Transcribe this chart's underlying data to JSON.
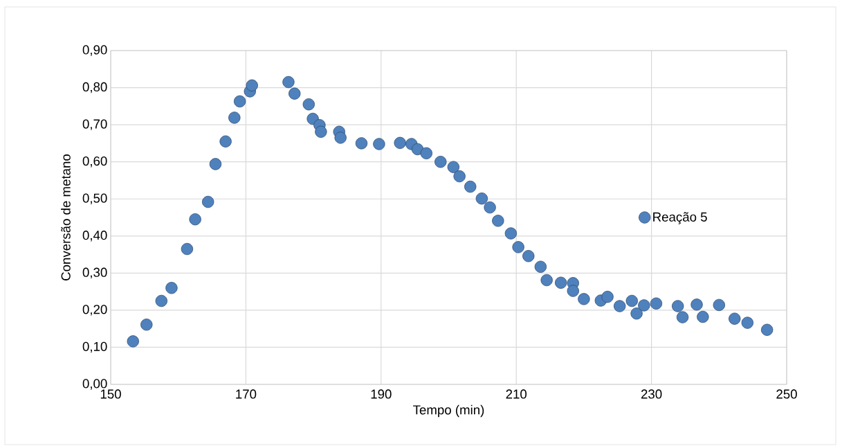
{
  "chart_data": {
    "type": "scatter",
    "xlabel": "Tempo (min)",
    "ylabel": "Conversão de metano",
    "x": [
      153.3,
      155.3,
      157.5,
      159.0,
      161.3,
      162.5,
      164.4,
      165.5,
      167.0,
      168.3,
      169.1,
      170.6,
      170.9,
      176.3,
      177.2,
      179.3,
      179.9,
      180.9,
      181.1,
      183.8,
      184.0,
      187.1,
      189.7,
      192.8,
      194.5,
      195.4,
      196.7,
      198.8,
      200.7,
      201.6,
      203.2,
      204.9,
      206.1,
      207.3,
      209.2,
      210.3,
      211.8,
      213.6,
      214.5,
      216.6,
      218.4,
      218.4,
      220.0,
      222.5,
      223.5,
      225.3,
      227.1,
      227.8,
      228.9,
      230.7,
      233.9,
      234.6,
      236.7,
      237.6,
      240.0,
      242.3,
      244.2,
      247.1
    ],
    "series": [
      {
        "name": "Reação 5",
        "color": "#4f81bd",
        "values": [
          0.116,
          0.161,
          0.225,
          0.26,
          0.365,
          0.445,
          0.492,
          0.594,
          0.655,
          0.719,
          0.763,
          0.79,
          0.806,
          0.815,
          0.784,
          0.755,
          0.716,
          0.699,
          0.681,
          0.681,
          0.665,
          0.65,
          0.648,
          0.651,
          0.648,
          0.634,
          0.623,
          0.6,
          0.586,
          0.561,
          0.533,
          0.501,
          0.477,
          0.441,
          0.407,
          0.37,
          0.346,
          0.317,
          0.281,
          0.274,
          0.273,
          0.252,
          0.23,
          0.226,
          0.236,
          0.211,
          0.225,
          0.191,
          0.213,
          0.218,
          0.211,
          0.181,
          0.215,
          0.182,
          0.214,
          0.177,
          0.166,
          0.147
        ]
      }
    ],
    "xlim": [
      150,
      250
    ],
    "xticks": [
      150,
      170,
      190,
      210,
      230,
      250
    ],
    "ylim": [
      0,
      0.9
    ],
    "yticks": [
      {
        "value": 0,
        "label": "0,00"
      },
      {
        "value": 0.1,
        "label": "0,10"
      },
      {
        "value": 0.2,
        "label": "0,20"
      },
      {
        "value": 0.3,
        "label": "0,30"
      },
      {
        "value": 0.4,
        "label": "0,40"
      },
      {
        "value": 0.5,
        "label": "0,50"
      },
      {
        "value": 0.6,
        "label": "0,60"
      },
      {
        "value": 0.7,
        "label": "0,70"
      },
      {
        "value": 0.8,
        "label": "0,80"
      },
      {
        "value": 0.9,
        "label": "0,90"
      }
    ],
    "grid": true,
    "legend": "right",
    "marker": "circle"
  }
}
